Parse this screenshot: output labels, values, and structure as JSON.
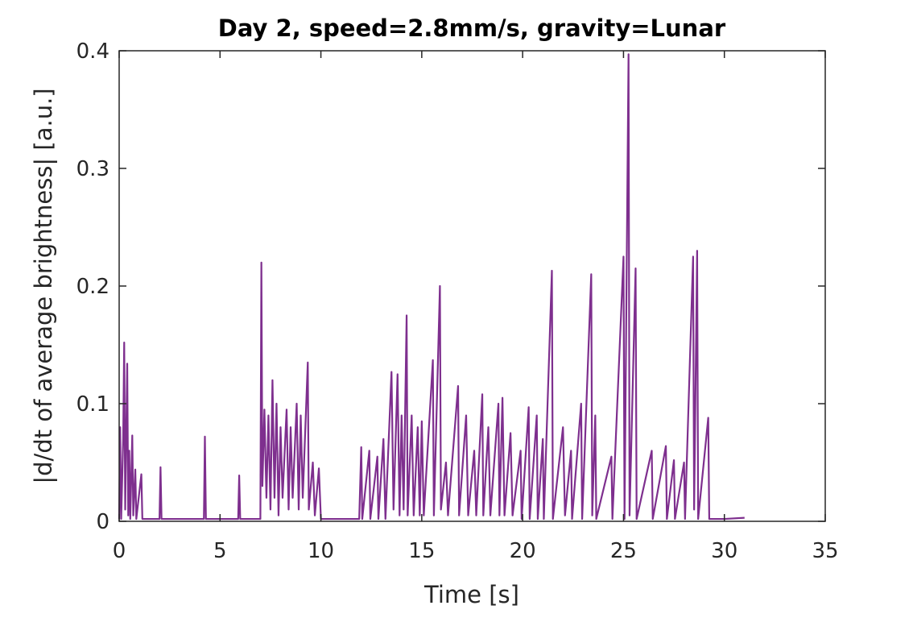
{
  "chart_data": {
    "type": "line",
    "title": "Day 2, speed=2.8mm/s, gravity=Lunar",
    "x_label": "Time [s]",
    "y_label": "|d/dt of average brightness| [a.u.]",
    "color": "#7e2f8e",
    "xlim": [
      0,
      35
    ],
    "xticks": [
      0,
      5,
      10,
      15,
      20,
      25,
      30,
      35
    ],
    "ylim": [
      0,
      0.4
    ],
    "yticks": [
      0,
      0.1,
      0.2,
      0.3,
      0.4
    ],
    "x": [
      0,
      0.05,
      0.1,
      0.2,
      0.25,
      0.3,
      0.4,
      0.45,
      0.5,
      0.55,
      0.65,
      0.7,
      0.8,
      0.85,
      1.1,
      1.15,
      2.0,
      2.05,
      2.1,
      4.2,
      4.25,
      4.3,
      5.9,
      5.95,
      6.0,
      7.0,
      7.05,
      7.1,
      7.2,
      7.3,
      7.4,
      7.5,
      7.6,
      7.7,
      7.8,
      7.9,
      8.0,
      8.1,
      8.3,
      8.4,
      8.5,
      8.6,
      8.8,
      8.9,
      9.0,
      9.1,
      9.35,
      9.4,
      9.6,
      9.7,
      9.9,
      10.0,
      11.9,
      12.0,
      12.05,
      12.4,
      12.45,
      12.8,
      12.85,
      13.1,
      13.2,
      13.5,
      13.6,
      13.8,
      13.9,
      14.0,
      14.1,
      14.25,
      14.3,
      14.5,
      14.6,
      14.8,
      14.9,
      15.0,
      15.1,
      15.55,
      15.6,
      15.9,
      15.95,
      16.2,
      16.3,
      16.8,
      16.85,
      17.2,
      17.3,
      17.6,
      17.7,
      18.0,
      18.05,
      18.3,
      18.4,
      18.8,
      18.85,
      19.0,
      19.1,
      19.4,
      19.5,
      19.9,
      19.95,
      20.3,
      20.35,
      20.7,
      20.75,
      21.0,
      21.05,
      21.45,
      21.5,
      22.0,
      22.1,
      22.4,
      22.45,
      22.9,
      22.95,
      23.4,
      23.45,
      23.6,
      23.65,
      24.4,
      24.45,
      25.0,
      25.05,
      25.25,
      25.3,
      25.6,
      25.65,
      26.4,
      26.45,
      27.1,
      27.15,
      27.5,
      27.55,
      28.0,
      28.05,
      28.45,
      28.5,
      28.65,
      28.7,
      29.2,
      29.25,
      30.0,
      31.0
    ],
    "values": [
      0.002,
      0.08,
      0.002,
      0.07,
      0.152,
      0.01,
      0.134,
      0.005,
      0.06,
      0.002,
      0.073,
      0.005,
      0.044,
      0.002,
      0.04,
      0.002,
      0.002,
      0.046,
      0.002,
      0.002,
      0.072,
      0.002,
      0.002,
      0.039,
      0.002,
      0.002,
      0.22,
      0.03,
      0.095,
      0.02,
      0.09,
      0.01,
      0.12,
      0.02,
      0.1,
      0.005,
      0.08,
      0.02,
      0.095,
      0.01,
      0.08,
      0.02,
      0.1,
      0.01,
      0.09,
      0.02,
      0.135,
      0.01,
      0.05,
      0.005,
      0.045,
      0.002,
      0.002,
      0.063,
      0.002,
      0.06,
      0.002,
      0.055,
      0.002,
      0.07,
      0.002,
      0.127,
      0.01,
      0.125,
      0.005,
      0.09,
      0.01,
      0.175,
      0.005,
      0.09,
      0.005,
      0.08,
      0.005,
      0.085,
      0.005,
      0.137,
      0.005,
      0.2,
      0.01,
      0.05,
      0.005,
      0.115,
      0.005,
      0.09,
      0.005,
      0.06,
      0.005,
      0.108,
      0.005,
      0.08,
      0.005,
      0.1,
      0.005,
      0.105,
      0.005,
      0.075,
      0.005,
      0.06,
      0.002,
      0.097,
      0.002,
      0.09,
      0.002,
      0.07,
      0.002,
      0.213,
      0.002,
      0.08,
      0.005,
      0.06,
      0.002,
      0.1,
      0.002,
      0.21,
      0.005,
      0.09,
      0.002,
      0.055,
      0.002,
      0.225,
      0.002,
      0.397,
      0.005,
      0.215,
      0.002,
      0.06,
      0.002,
      0.064,
      0.002,
      0.052,
      0.002,
      0.05,
      0.002,
      0.225,
      0.01,
      0.23,
      0.002,
      0.088,
      0.002,
      0.002,
      0.003
    ]
  }
}
